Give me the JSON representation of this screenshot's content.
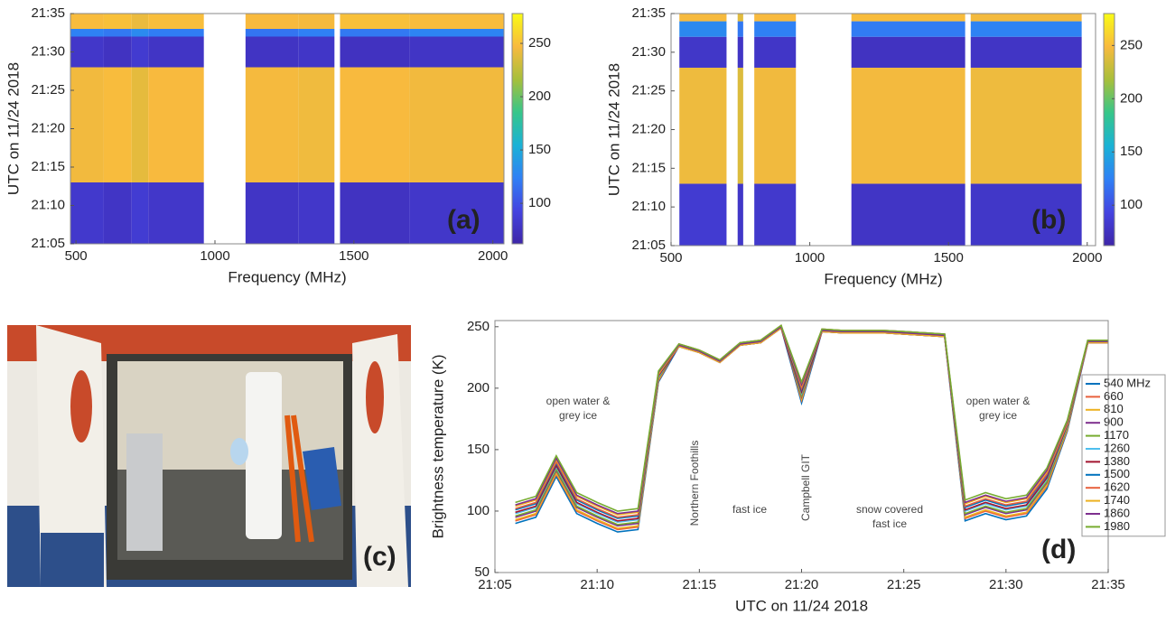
{
  "chart_data": [
    {
      "type": "heatmap",
      "panel_label": "(a)",
      "x_label": "Frequency (MHz)",
      "y_label": "UTC on 11/24 2018",
      "freq_bins": [
        480,
        600,
        700,
        760,
        960,
        1110,
        1300,
        1430,
        1450,
        1700,
        2040
      ],
      "time_bins": [
        "21:05",
        "21:13",
        "21:28",
        "21:32",
        "21:33",
        "21:35"
      ],
      "values": [
        [
          82,
          78,
          85,
          80,
          null,
          78,
          80,
          null,
          76,
          80
        ],
        [
          245,
          248,
          240,
          247,
          null,
          246,
          244,
          null,
          247,
          245
        ],
        [
          80,
          76,
          84,
          78,
          null,
          77,
          79,
          null,
          75,
          78
        ],
        [
          125,
          120,
          130,
          122,
          null,
          118,
          124,
          null,
          120,
          126
        ],
        [
          248,
          250,
          242,
          249,
          null,
          247,
          246,
          null,
          250,
          248
        ]
      ],
      "xlim": [
        480,
        2040
      ],
      "xticks": [
        500,
        1000,
        1500,
        2000
      ],
      "ylim": [
        "21:05",
        "21:35"
      ],
      "yticks": [
        "21:05",
        "21:10",
        "21:15",
        "21:20",
        "21:25",
        "21:30",
        "21:35"
      ],
      "clim": [
        62,
        278
      ],
      "cticks": [
        100,
        150,
        200,
        250
      ],
      "colormap": [
        "#3e26a8",
        "#4443e0",
        "#2f80f5",
        "#1ab2d6",
        "#36c68a",
        "#a7bf3b",
        "#f8ba3e",
        "#f9fb15"
      ]
    },
    {
      "type": "heatmap",
      "panel_label": "(b)",
      "x_label": "Frequency (MHz)",
      "y_label": "UTC on 11/24 2018",
      "freq_bins": [
        530,
        700,
        740,
        760,
        800,
        950,
        1150,
        1560,
        1580,
        1980
      ],
      "time_bins": [
        "21:05",
        "21:13",
        "21:28",
        "21:32",
        "21:34",
        "21:35"
      ],
      "values": [
        [
          85,
          null,
          80,
          null,
          82,
          null,
          78,
          null,
          80
        ],
        [
          245,
          null,
          238,
          null,
          246,
          null,
          247,
          null,
          245
        ],
        [
          80,
          null,
          78,
          null,
          79,
          null,
          76,
          null,
          78
        ],
        [
          130,
          null,
          120,
          null,
          125,
          null,
          122,
          null,
          126
        ],
        [
          248,
          null,
          240,
          null,
          249,
          null,
          250,
          null,
          247
        ]
      ],
      "xlim": [
        500,
        2030
      ],
      "xticks": [
        500,
        1000,
        1500,
        2000
      ],
      "ylim": [
        "21:05",
        "21:35"
      ],
      "yticks": [
        "21:05",
        "21:10",
        "21:15",
        "21:20",
        "21:25",
        "21:30",
        "21:35"
      ],
      "clim": [
        62,
        280
      ],
      "cticks": [
        100,
        150,
        200,
        250
      ],
      "colormap": [
        "#3e26a8",
        "#4443e0",
        "#2f80f5",
        "#1ab2d6",
        "#36c68a",
        "#a7bf3b",
        "#f8ba3e",
        "#f9fb15"
      ]
    },
    {
      "type": "line",
      "panel_label": "(d)",
      "x_label": "UTC on 11/24 2018",
      "y_label": "Brightness temperature (K)",
      "x": [
        "21:06",
        "21:07",
        "21:08",
        "21:09",
        "21:10",
        "21:11",
        "21:12",
        "21:13",
        "21:14",
        "21:15",
        "21:16",
        "21:17",
        "21:18",
        "21:19",
        "21:20",
        "21:21",
        "21:22",
        "21:23",
        "21:24",
        "21:25",
        "21:26",
        "21:27",
        "21:28",
        "21:29",
        "21:30",
        "21:31",
        "21:32",
        "21:33",
        "21:34",
        "21:35"
      ],
      "series": [
        {
          "name": "540 MHz",
          "color": "#0072bd",
          "values": [
            90,
            95,
            128,
            98,
            90,
            83,
            85,
            205,
            234,
            229,
            221,
            235,
            237,
            249,
            188,
            246,
            245,
            245,
            245,
            244,
            243,
            242,
            92,
            98,
            93,
            96,
            118,
            165,
            237,
            237
          ]
        },
        {
          "name": "660",
          "color": "#e8603c",
          "values": [
            92,
            97,
            130,
            100,
            92,
            85,
            87,
            206,
            235,
            230,
            222,
            236,
            238,
            250,
            190,
            247,
            246,
            246,
            246,
            245,
            244,
            243,
            94,
            100,
            95,
            98,
            120,
            166,
            238,
            238
          ]
        },
        {
          "name": "810",
          "color": "#edb120",
          "values": [
            93,
            98,
            131,
            101,
            93,
            86,
            88,
            207,
            236,
            231,
            223,
            237,
            239,
            251,
            191,
            248,
            247,
            247,
            247,
            246,
            245,
            244,
            95,
            101,
            96,
            99,
            121,
            167,
            239,
            239
          ]
        },
        {
          "name": "900",
          "color": "#7e2f8e",
          "values": [
            95,
            100,
            133,
            103,
            95,
            88,
            90,
            208,
            234,
            229,
            221,
            235,
            237,
            249,
            193,
            246,
            245,
            245,
            245,
            244,
            243,
            242,
            97,
            103,
            98,
            101,
            123,
            168,
            237,
            237
          ]
        },
        {
          "name": "1170",
          "color": "#77ac30",
          "values": [
            96,
            101,
            134,
            104,
            96,
            89,
            91,
            208,
            235,
            230,
            222,
            236,
            238,
            250,
            194,
            247,
            246,
            246,
            246,
            245,
            244,
            243,
            98,
            104,
            99,
            102,
            124,
            168,
            238,
            238
          ]
        },
        {
          "name": "1260",
          "color": "#4dbeee",
          "values": [
            98,
            103,
            136,
            106,
            98,
            91,
            93,
            209,
            236,
            231,
            223,
            237,
            239,
            251,
            196,
            248,
            247,
            247,
            247,
            246,
            245,
            244,
            100,
            106,
            101,
            104,
            126,
            169,
            239,
            239
          ]
        },
        {
          "name": "1380",
          "color": "#a2142f",
          "values": [
            99,
            104,
            137,
            107,
            99,
            92,
            94,
            210,
            234,
            229,
            221,
            235,
            237,
            249,
            197,
            246,
            245,
            245,
            245,
            244,
            243,
            242,
            101,
            107,
            102,
            105,
            127,
            170,
            237,
            237
          ]
        },
        {
          "name": "1500",
          "color": "#0072bd",
          "values": [
            101,
            106,
            139,
            109,
            101,
            94,
            96,
            211,
            235,
            230,
            222,
            236,
            238,
            250,
            199,
            247,
            246,
            246,
            246,
            245,
            244,
            243,
            103,
            109,
            104,
            107,
            129,
            171,
            238,
            238
          ]
        },
        {
          "name": "1620",
          "color": "#e8603c",
          "values": [
            102,
            107,
            140,
            110,
            102,
            95,
            97,
            211,
            236,
            231,
            223,
            237,
            239,
            251,
            200,
            248,
            247,
            247,
            247,
            246,
            245,
            244,
            104,
            110,
            105,
            108,
            130,
            171,
            239,
            239
          ]
        },
        {
          "name": "1740",
          "color": "#edb120",
          "values": [
            104,
            109,
            142,
            112,
            104,
            97,
            99,
            212,
            234,
            229,
            221,
            235,
            237,
            249,
            202,
            246,
            245,
            245,
            245,
            244,
            243,
            242,
            106,
            112,
            107,
            110,
            132,
            172,
            237,
            237
          ]
        },
        {
          "name": "1860",
          "color": "#7e2f8e",
          "values": [
            105,
            110,
            143,
            113,
            105,
            98,
            100,
            213,
            235,
            230,
            222,
            236,
            238,
            250,
            203,
            247,
            246,
            246,
            246,
            245,
            244,
            243,
            107,
            113,
            108,
            111,
            133,
            173,
            238,
            238
          ]
        },
        {
          "name": "1980",
          "color": "#77ac30",
          "values": [
            107,
            112,
            145,
            115,
            107,
            100,
            102,
            214,
            236,
            231,
            223,
            237,
            239,
            251,
            205,
            248,
            247,
            247,
            247,
            246,
            245,
            244,
            109,
            115,
            110,
            113,
            135,
            174,
            239,
            239
          ]
        }
      ],
      "xlim": [
        "21:05",
        "21:35"
      ],
      "xticks": [
        "21:05",
        "21:10",
        "21:15",
        "21:20",
        "21:25",
        "21:30",
        "21:35"
      ],
      "ylim": [
        50,
        255
      ],
      "yticks": [
        50,
        100,
        150,
        200,
        250
      ],
      "legend": "right",
      "annotations": [
        {
          "lines": [
            "open water &",
            "grey ice"
          ]
        },
        {
          "lines": [
            "Northern Foothills"
          ]
        },
        {
          "lines": [
            "fast ice"
          ]
        },
        {
          "lines": [
            "Campbell GIT"
          ]
        },
        {
          "lines": [
            "snow covered",
            "fast ice"
          ]
        },
        {
          "lines": [
            "open water &",
            "grey ice"
          ]
        }
      ]
    }
  ],
  "photo": {
    "panel_label": "(c)"
  }
}
